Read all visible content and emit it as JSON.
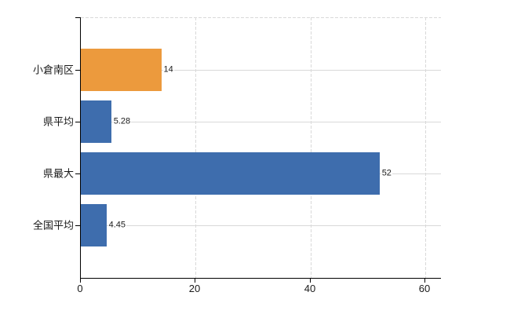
{
  "chart_data": {
    "type": "bar",
    "orientation": "horizontal",
    "title": "",
    "categories": [
      "小倉南区",
      "県平均",
      "県最大",
      "全国平均"
    ],
    "values": [
      14,
      5.28,
      52,
      4.45
    ],
    "value_labels": [
      "14",
      "5.28",
      "52",
      "4.45"
    ],
    "bar_colors": [
      "#EC9A3D",
      "#3E6DAD",
      "#3E6DAD",
      "#3E6DAD"
    ],
    "x_ticks": [
      0,
      20,
      40,
      60
    ],
    "x_tick_labels": [
      "0",
      "20",
      "40",
      "60"
    ],
    "xlim": [
      0,
      62.7
    ],
    "grid": true,
    "legend": false,
    "value_labels_shown": true,
    "colors": {
      "background": "#FFFFFF",
      "axis": "#000000",
      "gridline": "#D9D9D9",
      "text": "#1A1A1A",
      "series_primary": "#3E6DAD",
      "series_highlight": "#EC9A3D"
    }
  }
}
